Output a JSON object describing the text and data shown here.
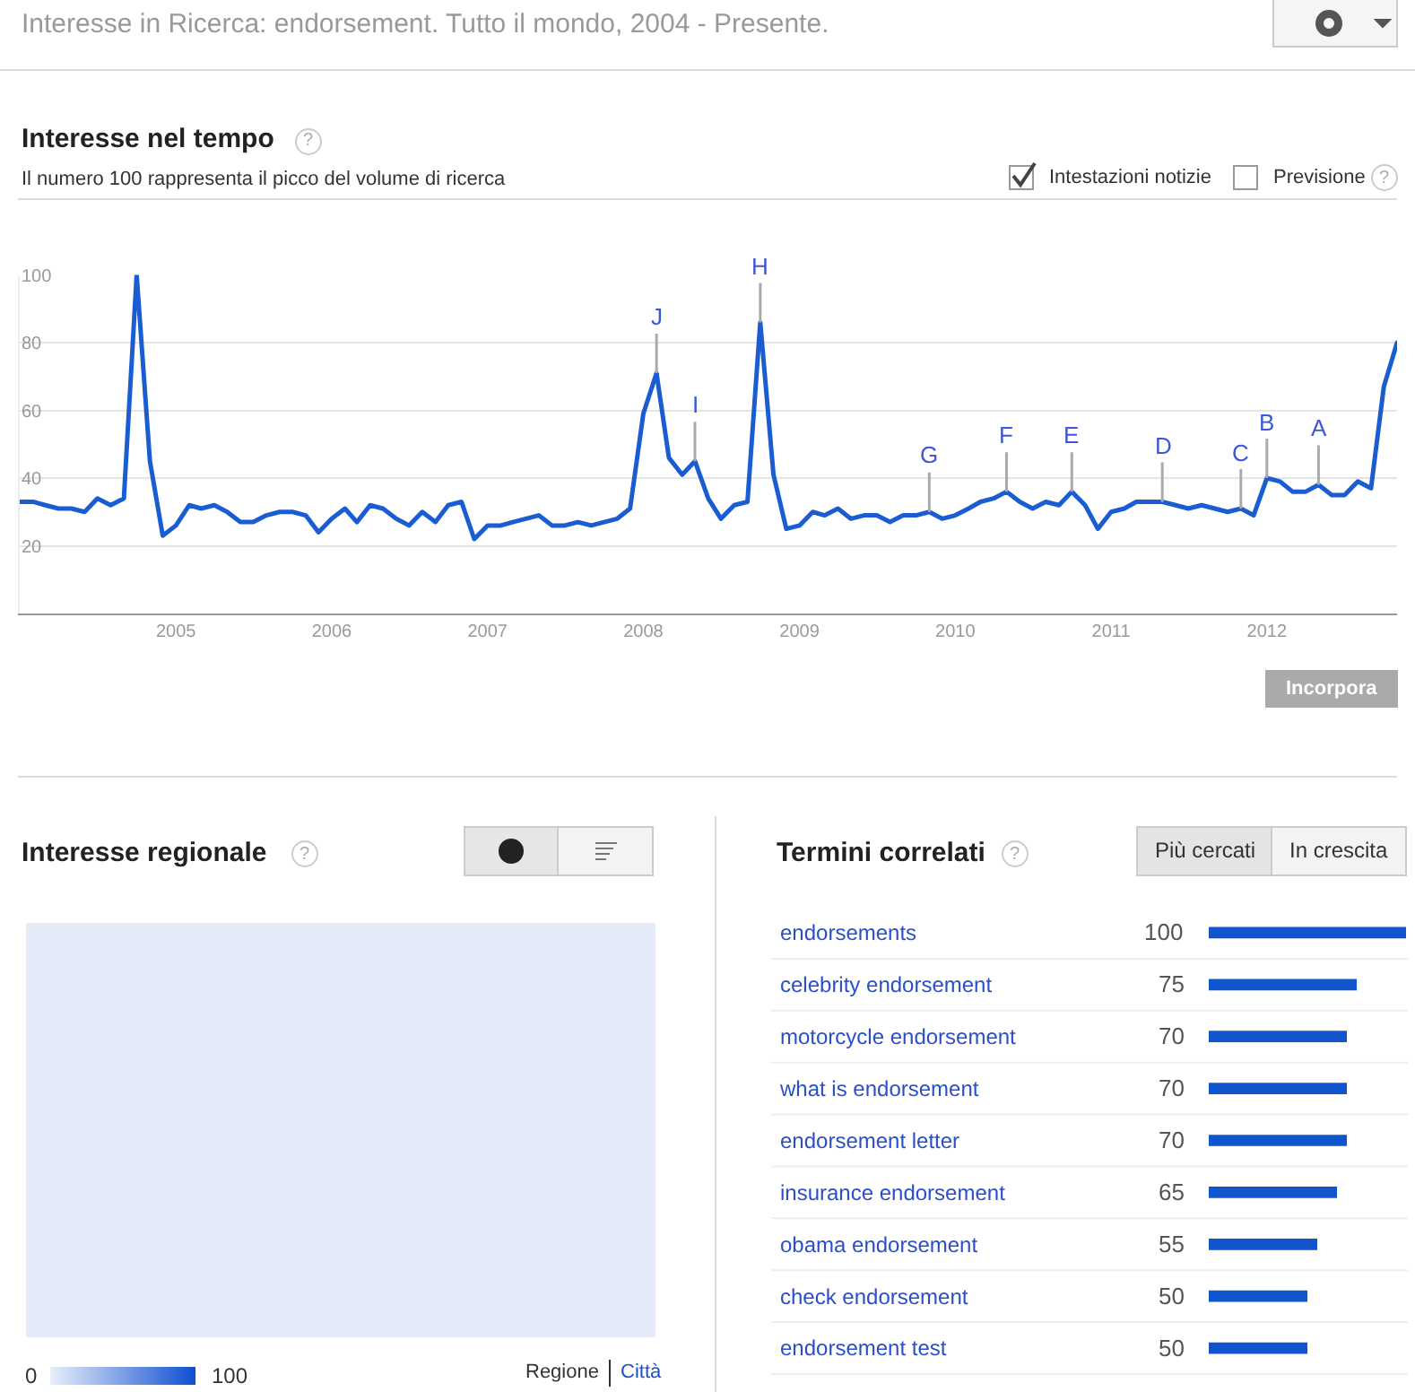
{
  "chart_data": [
    {
      "type": "line",
      "title": "Interesse nel tempo",
      "subtitle": "Il numero 100 rappresenta il picco del volume di ricerca",
      "x": [
        "2004-01",
        "2004-02",
        "2004-03",
        "2004-04",
        "2004-05",
        "2004-06",
        "2004-07",
        "2004-08",
        "2004-09",
        "2004-10",
        "2004-11",
        "2004-12",
        "2005-01",
        "2005-02",
        "2005-03",
        "2005-04",
        "2005-05",
        "2005-06",
        "2005-07",
        "2005-08",
        "2005-09",
        "2005-10",
        "2005-11",
        "2005-12",
        "2006-01",
        "2006-02",
        "2006-03",
        "2006-04",
        "2006-05",
        "2006-06",
        "2006-07",
        "2006-08",
        "2006-09",
        "2006-10",
        "2006-11",
        "2006-12",
        "2007-01",
        "2007-02",
        "2007-03",
        "2007-04",
        "2007-05",
        "2007-06",
        "2007-07",
        "2007-08",
        "2007-09",
        "2007-10",
        "2007-11",
        "2007-12",
        "2008-01",
        "2008-02",
        "2008-03",
        "2008-04",
        "2008-05",
        "2008-06",
        "2008-07",
        "2008-08",
        "2008-09",
        "2008-10",
        "2008-11",
        "2008-12",
        "2009-01",
        "2009-02",
        "2009-03",
        "2009-04",
        "2009-05",
        "2009-06",
        "2009-07",
        "2009-08",
        "2009-09",
        "2009-10",
        "2009-11",
        "2009-12",
        "2010-01",
        "2010-02",
        "2010-03",
        "2010-04",
        "2010-05",
        "2010-06",
        "2010-07",
        "2010-08",
        "2010-09",
        "2010-10",
        "2010-11",
        "2010-12",
        "2011-01",
        "2011-02",
        "2011-03",
        "2011-04",
        "2011-05",
        "2011-06",
        "2011-07",
        "2011-08",
        "2011-09",
        "2011-10",
        "2011-11",
        "2011-12",
        "2012-01",
        "2012-02",
        "2012-03",
        "2012-04",
        "2012-05",
        "2012-06",
        "2012-07",
        "2012-08",
        "2012-09",
        "2012-10",
        "2012-11"
      ],
      "values": [
        33,
        33,
        32,
        31,
        31,
        30,
        34,
        32,
        34,
        100,
        45,
        23,
        26,
        32,
        31,
        32,
        30,
        27,
        27,
        29,
        30,
        30,
        29,
        24,
        28,
        31,
        27,
        32,
        31,
        28,
        26,
        30,
        27,
        32,
        33,
        22,
        26,
        26,
        27,
        28,
        29,
        26,
        26,
        27,
        26,
        27,
        28,
        31,
        59,
        71,
        46,
        41,
        45,
        34,
        28,
        32,
        33,
        86,
        41,
        25,
        26,
        30,
        29,
        31,
        28,
        29,
        29,
        27,
        29,
        29,
        30,
        28,
        29,
        31,
        33,
        34,
        36,
        33,
        31,
        33,
        32,
        36,
        32,
        25,
        30,
        31,
        33,
        33,
        33,
        32,
        31,
        32,
        31,
        30,
        31,
        29,
        40,
        39,
        36,
        36,
        38,
        35,
        35,
        39,
        37,
        67,
        80
      ],
      "color": "#1a5dd2",
      "xlim": [
        "2004-01",
        "2012-11"
      ],
      "xticks": [
        "2005",
        "2006",
        "2007",
        "2008",
        "2009",
        "2010",
        "2011",
        "2012"
      ],
      "ylim": [
        0,
        100
      ],
      "yticks": [
        20,
        40,
        60,
        80,
        100
      ],
      "grid": "y",
      "annotations": [
        "Interesse in Ricerca: endorsement. Tutto il mondo, 2004 - Presente.",
        "?",
        "Intestazioni notizie",
        "Previsione",
        "?",
        "Incorpora",
        {
          "text": "J",
          "x": "2008-02",
          "y": 71
        },
        {
          "text": "I",
          "x": "2008-05",
          "y": 45
        },
        {
          "text": "H",
          "x": "2008-10",
          "y": 86
        },
        {
          "text": "G",
          "x": "2009-11",
          "y": 30
        },
        {
          "text": "F",
          "x": "2010-05",
          "y": 36
        },
        {
          "text": "E",
          "x": "2010-10",
          "y": 36
        },
        {
          "text": "D",
          "x": "2011-05",
          "y": 33
        },
        {
          "text": "C",
          "x": "2011-11",
          "y": 31
        },
        {
          "text": "B",
          "x": "2012-01",
          "y": 40
        },
        {
          "text": "A",
          "x": "2012-05",
          "y": 38
        }
      ]
    },
    {
      "type": "other",
      "title": "Interesse regionale",
      "annotations": [
        "?",
        "0",
        "100",
        "Regione",
        "Città"
      ]
    },
    {
      "type": "bar",
      "orientation": "horizontal",
      "title": "Termini correlati",
      "categories": [
        "endorsements",
        "celebrity endorsement",
        "motorcycle endorsement",
        "what is endorsement",
        "endorsement letter",
        "insurance endorsement",
        "obama endorsement",
        "check endorsement",
        "endorsement test"
      ],
      "values": [
        100,
        75,
        70,
        70,
        70,
        65,
        55,
        50,
        50
      ],
      "color": "#1155cc",
      "xlim": [
        0,
        100
      ],
      "data_labels": true,
      "tick_labels": "y",
      "annotations": [
        "?",
        "Più cercati",
        "In crescita"
      ]
    }
  ]
}
